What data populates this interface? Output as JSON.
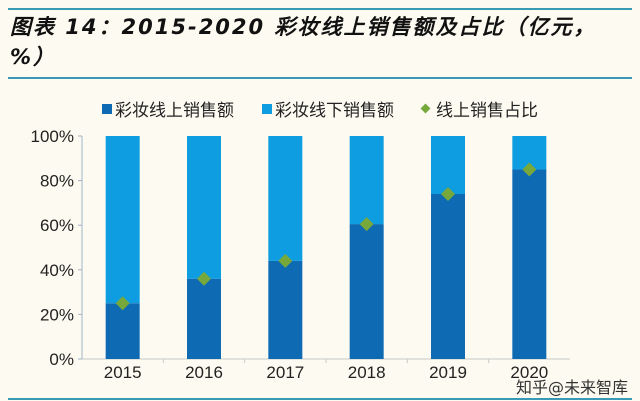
{
  "title": "图表 14：2015-2020 彩妆线上销售额及占比（亿元，%）",
  "watermark": "知乎@未来智库",
  "chart_data": {
    "type": "bar",
    "stacked": true,
    "title": "图表 14：2015-2020 彩妆线上销售额及占比（亿元，%）",
    "categories": [
      "2015",
      "2016",
      "2017",
      "2018",
      "2019",
      "2020"
    ],
    "series": [
      {
        "name": "彩妆线上销售额",
        "kind": "bar",
        "color": "#0f6ab4",
        "values": [
          25,
          36,
          44,
          60.5,
          74,
          85
        ]
      },
      {
        "name": "彩妆线下销售额",
        "kind": "bar",
        "color": "#0d9de0",
        "values": [
          75,
          64,
          56,
          39.5,
          26,
          15
        ]
      },
      {
        "name": "线上销售占比",
        "kind": "marker",
        "marker": "diamond",
        "color": "#77a83c",
        "values": [
          25,
          36,
          44,
          60.5,
          74,
          85
        ]
      }
    ],
    "yticks": [
      "0%",
      "20%",
      "40%",
      "60%",
      "80%",
      "100%"
    ],
    "ylim": [
      0,
      100
    ],
    "grid": false,
    "legend": "top"
  }
}
